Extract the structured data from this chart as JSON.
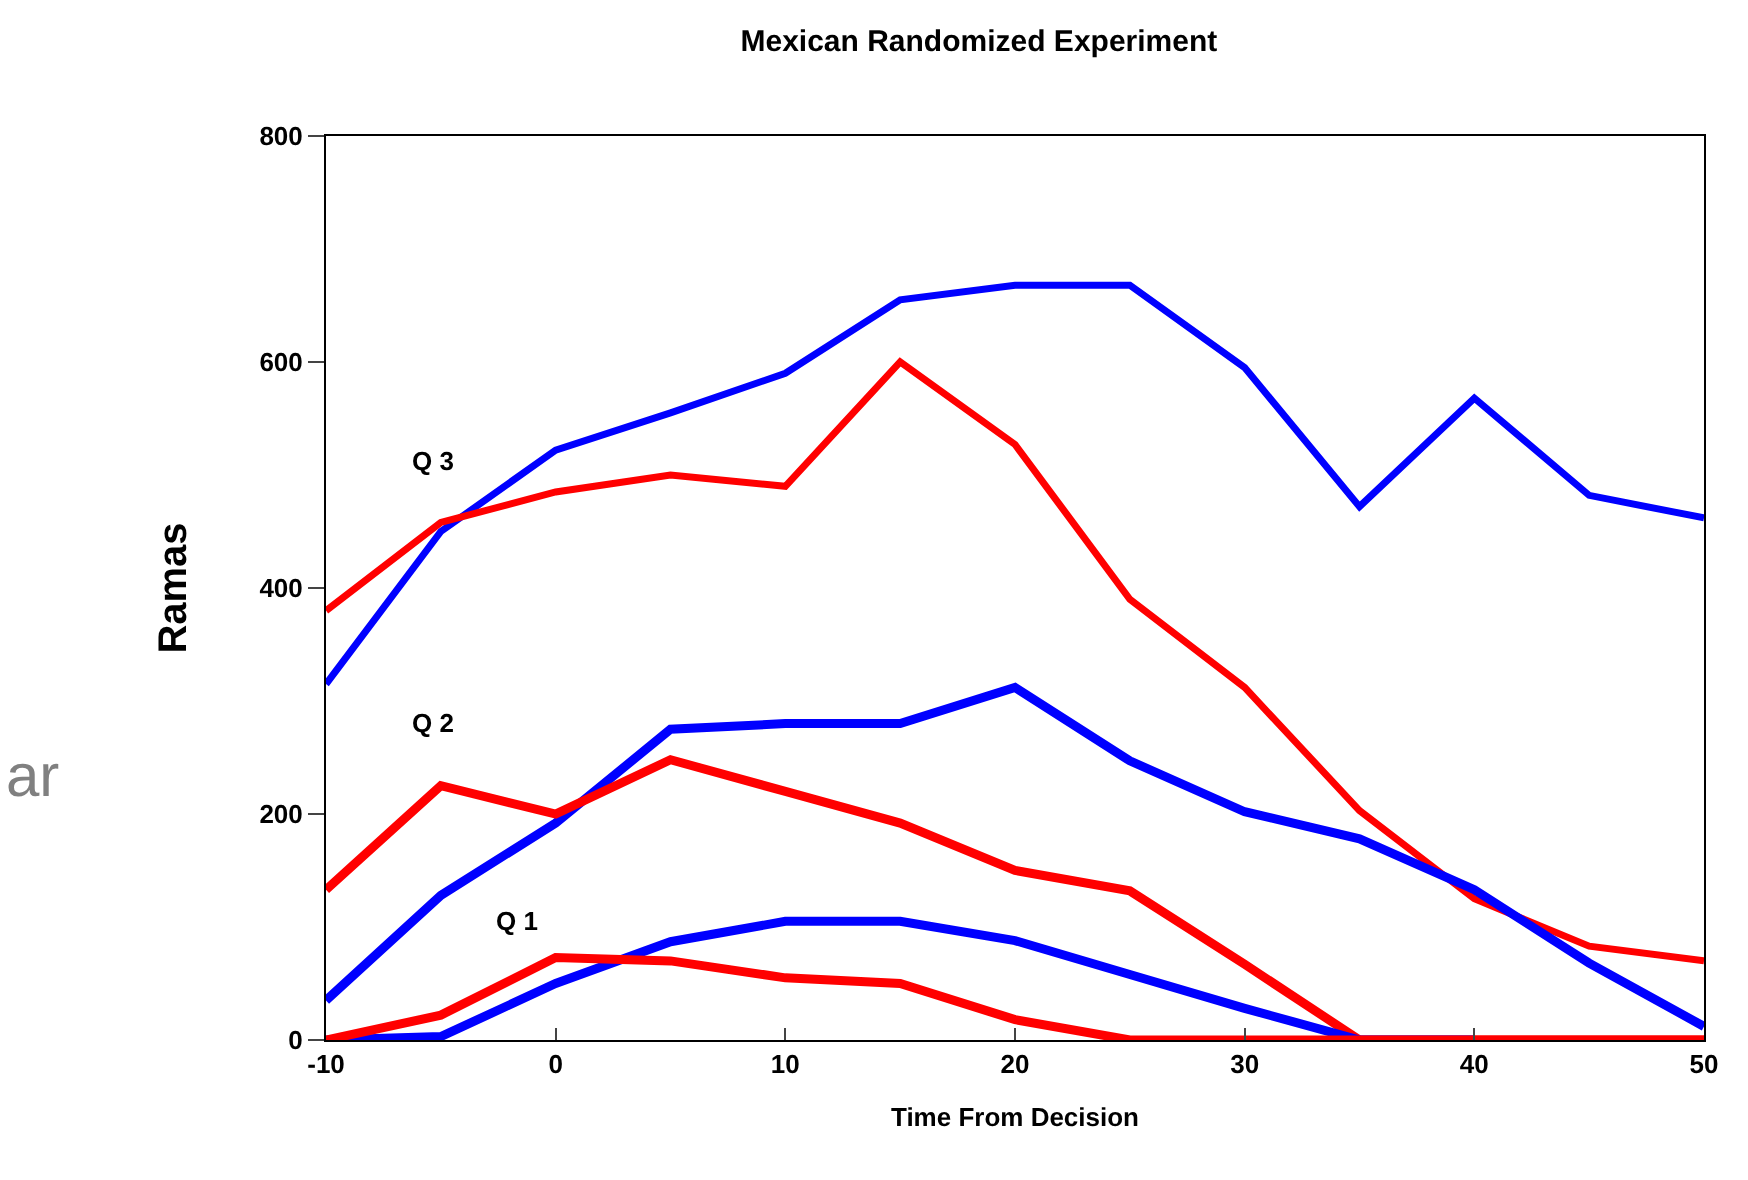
{
  "chart_data": {
    "type": "line",
    "title": "Mexican Randomized Experiment",
    "xlabel": "Time From Decision",
    "ylabel": "Ramas",
    "x": [
      -10,
      -5,
      0,
      5,
      10,
      15,
      20,
      25,
      30,
      35,
      40,
      45,
      50
    ],
    "xlim": [
      -10,
      50
    ],
    "xticks": [
      {
        "value": -10,
        "label": "-10"
      },
      0,
      10,
      20,
      30,
      40,
      50
    ],
    "ylim": [
      0,
      800
    ],
    "yticks": [
      0,
      200,
      400,
      600,
      800
    ],
    "marker": "none",
    "line_style": "solid",
    "series": [
      {
        "color": "#0000ff",
        "values": [
          315,
          450,
          522,
          555,
          590,
          655,
          668,
          668,
          595,
          472,
          568,
          482,
          462
        ]
      },
      {
        "color": "#ff0000",
        "values": [
          380,
          458,
          485,
          500,
          490,
          600,
          527,
          390,
          312,
          203,
          125,
          83,
          70
        ]
      },
      {
        "color": "#0000ff",
        "values": [
          35,
          128,
          192,
          275,
          280,
          280,
          312,
          247,
          202,
          178,
          133,
          68,
          12
        ]
      },
      {
        "color": "#ff0000",
        "values": [
          133,
          225,
          200,
          248,
          220,
          192,
          150,
          132,
          67,
          0,
          0,
          0,
          0
        ]
      },
      {
        "color": "#0000ff",
        "values": [
          0,
          3,
          50,
          87,
          105,
          105,
          88,
          58,
          28,
          0,
          0,
          null,
          null
        ]
      },
      {
        "color": "#ff0000",
        "values": [
          0,
          22,
          73,
          70,
          55,
          50,
          18,
          0,
          0,
          0,
          0,
          0,
          0
        ]
      }
    ],
    "annotations": [
      "Q 3",
      "Q 2",
      "Q 1",
      "ar"
    ]
  }
}
